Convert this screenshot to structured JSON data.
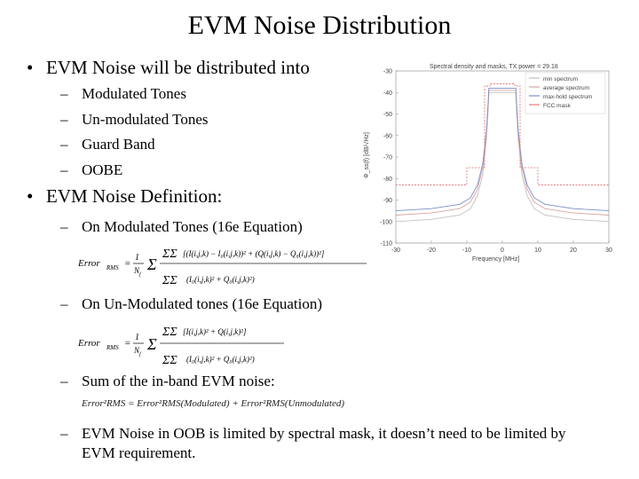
{
  "slide": {
    "title": "EVM Noise Distribution",
    "bullet1": "EVM Noise will be distributed into",
    "sub1": [
      "Modulated Tones",
      "Un-modulated Tones",
      "Guard Band",
      "OOBE"
    ],
    "bullet2": "EVM Noise Definition:",
    "eq_items": [
      "On Modulated Tones (16e Equation)",
      "On Un-Modulated tones (16e Equation)",
      "Sum of the in-band EVM noise:",
      "EVM Noise in OOB is limited by spectral mask, it doesn’t need to be limited by EVM requirement."
    ],
    "bullet_glyph": "•",
    "dash_glyph": "–"
  },
  "equations": {
    "eq1_lhs": "Error",
    "eq1_lhs_sub": "RMS",
    "eq1_num": "[(I(i,j,k) − I₀(i,j,k))² + (Q(i,j,k) − Q₀(i,j,k))²]",
    "eq1_den": "(I₀(i,j,k)² + Q₀(i,j,k)²)",
    "eq2_num": "[I(i,j,k)² + Q(i,j,k)²]",
    "eq2_den": "(I₀(i,j,k)² + Q₀(i,j,k)²)",
    "eq3": "Error²RMS = Error²RMS(Modulated) + Error²RMS(Unmodulated)"
  },
  "chart_data": {
    "type": "line",
    "title": "Spectral density and masks, TX power = 29.18",
    "xlabel": "Frequency [MHz]",
    "ylabel": "Φ_ss(f) [dB/√Hz]",
    "xlim": [
      -30,
      30
    ],
    "ylim": [
      -110,
      -30
    ],
    "x_ticks": [
      -30,
      -20,
      -10,
      0,
      10,
      20,
      30
    ],
    "y_ticks": [
      -30,
      -40,
      -50,
      -60,
      -70,
      -80,
      -90,
      -100,
      -110
    ],
    "grid": false,
    "legend_position": "top-right",
    "series": [
      {
        "name": "min spectrum",
        "color": "#c0c0c0",
        "x": [
          -30,
          -20,
          -12,
          -9,
          -7,
          -5.5,
          -4.5,
          -4,
          -3.8,
          3.8,
          4,
          4.5,
          5.5,
          7,
          9,
          12,
          20,
          30
        ],
        "y": [
          -100,
          -99,
          -97,
          -94,
          -88,
          -78,
          -62,
          -48,
          -40,
          -40,
          -48,
          -62,
          -78,
          -88,
          -94,
          -97,
          -99,
          -100
        ]
      },
      {
        "name": "average spectrum",
        "color": "#d9a3a3",
        "x": [
          -30,
          -20,
          -12,
          -9,
          -7,
          -5.5,
          -4.5,
          -4,
          -3.8,
          3.8,
          4,
          4.5,
          5.5,
          7,
          9,
          12,
          20,
          30
        ],
        "y": [
          -97,
          -96,
          -94,
          -91,
          -85,
          -75,
          -60,
          -46,
          -39,
          -39,
          -46,
          -60,
          -75,
          -85,
          -91,
          -94,
          -96,
          -97
        ]
      },
      {
        "name": "max-hold spectrum",
        "color": "#7b8fc9",
        "x": [
          -30,
          -20,
          -12,
          -9,
          -7,
          -5.5,
          -4.5,
          -4,
          -3.8,
          3.8,
          4,
          4.5,
          5.5,
          7,
          9,
          12,
          20,
          30
        ],
        "y": [
          -95,
          -94,
          -92,
          -89,
          -83,
          -73,
          -58,
          -45,
          -38,
          -38,
          -45,
          -58,
          -73,
          -83,
          -89,
          -92,
          -94,
          -95
        ]
      },
      {
        "name": "FCC mask",
        "color": "#e67a7a",
        "x": [
          -30,
          -10,
          -10,
          -5,
          -5,
          -3.5,
          -3.5,
          3.5,
          3.5,
          5,
          5,
          10,
          10,
          30
        ],
        "y": [
          -83,
          -83,
          -75,
          -75,
          -37,
          -37,
          -36,
          -36,
          -37,
          -37,
          -75,
          -75,
          -83,
          -83
        ]
      }
    ]
  }
}
